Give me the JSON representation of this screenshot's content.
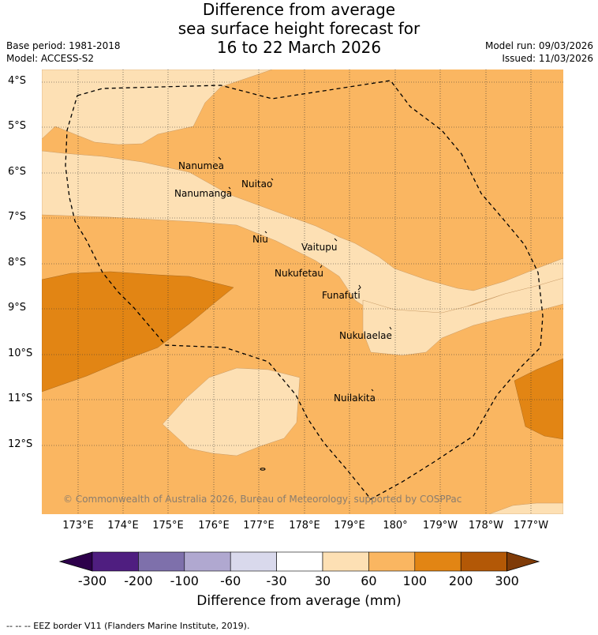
{
  "title": {
    "line1": "Difference from average",
    "line2": "sea surface height forecast for",
    "line3": "16 to 22 March 2026"
  },
  "meta": {
    "base_period": "Base period: 1981-2018",
    "model": "Model: ACCESS-S2",
    "model_run": "Model run: 09/03/2026",
    "issued": "Issued: 11/03/2026"
  },
  "axes": {
    "lat_ticks": [
      "4°S",
      "5°S",
      "6°S",
      "7°S",
      "8°S",
      "9°S",
      "10°S",
      "11°S",
      "12°S"
    ],
    "lon_ticks": [
      "173°E",
      "174°E",
      "175°E",
      "176°E",
      "177°E",
      "178°E",
      "179°E",
      "180°",
      "179°W",
      "178°W",
      "177°W"
    ]
  },
  "places": [
    {
      "name": "Nanumea"
    },
    {
      "name": "Nuitao"
    },
    {
      "name": "Nanumanga"
    },
    {
      "name": "Niu"
    },
    {
      "name": "Vaitupu"
    },
    {
      "name": "Nukufetau"
    },
    {
      "name": "Funafuti"
    },
    {
      "name": "Nukulaelae"
    },
    {
      "name": "Nuilakita"
    }
  ],
  "copyright": "© Commonwealth of Australia 2026, Bureau of Meteorology, supported by COSPPac",
  "colorbar": {
    "ticks": [
      "-300",
      "-200",
      "-100",
      "-60",
      "-30",
      "30",
      "60",
      "100",
      "200",
      "300"
    ],
    "colors": [
      "#4f1e80",
      "#7e70ab",
      "#b0a8d0",
      "#d9d9ec",
      "#ffffff",
      "#fde0b4",
      "#fab661",
      "#e28514",
      "#b35806"
    ],
    "end_low_color": "#2d004b",
    "end_high_color": "#7f3b08",
    "label": "Difference from average (mm)"
  },
  "footer": "--  --  -- EEZ border V11 (Flanders Marine Institute, 2019)."
}
